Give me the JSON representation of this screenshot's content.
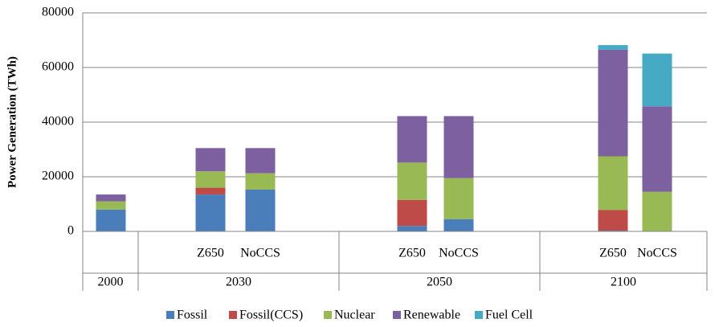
{
  "chart_data": {
    "type": "stacked_bar",
    "y_axis_label": "Power Generation (TWh)",
    "categories": [
      null,
      "Z650",
      "NoCCS",
      "Z650",
      "NoCCS",
      "Z650",
      "NoCCS"
    ],
    "groups": [
      {
        "label": "2000",
        "size": 1
      },
      {
        "label": "2030",
        "size": 2
      },
      {
        "label": "2050",
        "size": 2
      },
      {
        "label": "2100",
        "size": 2
      }
    ],
    "series": [
      {
        "name": "Fossil",
        "color": "#4a7ebb",
        "values": [
          8000,
          13500,
          15300,
          2000,
          4500,
          300,
          0
        ]
      },
      {
        "name": "Fossil(CCS)",
        "color": "#be4b48",
        "values": [
          0,
          2500,
          0,
          9500,
          0,
          7500,
          0
        ]
      },
      {
        "name": "Nuclear",
        "color": "#98b954",
        "values": [
          3000,
          6000,
          6000,
          13700,
          15000,
          19700,
          14500
        ]
      },
      {
        "name": "Renewable",
        "color": "#7d60a0",
        "values": [
          2500,
          8500,
          9200,
          17000,
          22700,
          39000,
          31300
        ]
      },
      {
        "name": "Fuel Cell",
        "color": "#46aac5",
        "values": [
          0,
          0,
          0,
          0,
          0,
          1700,
          19300
        ]
      }
    ],
    "ylim": [
      0,
      80000
    ],
    "yticks": [
      0,
      20000,
      40000,
      60000,
      80000
    ],
    "grid": true,
    "legend": "bottom"
  }
}
